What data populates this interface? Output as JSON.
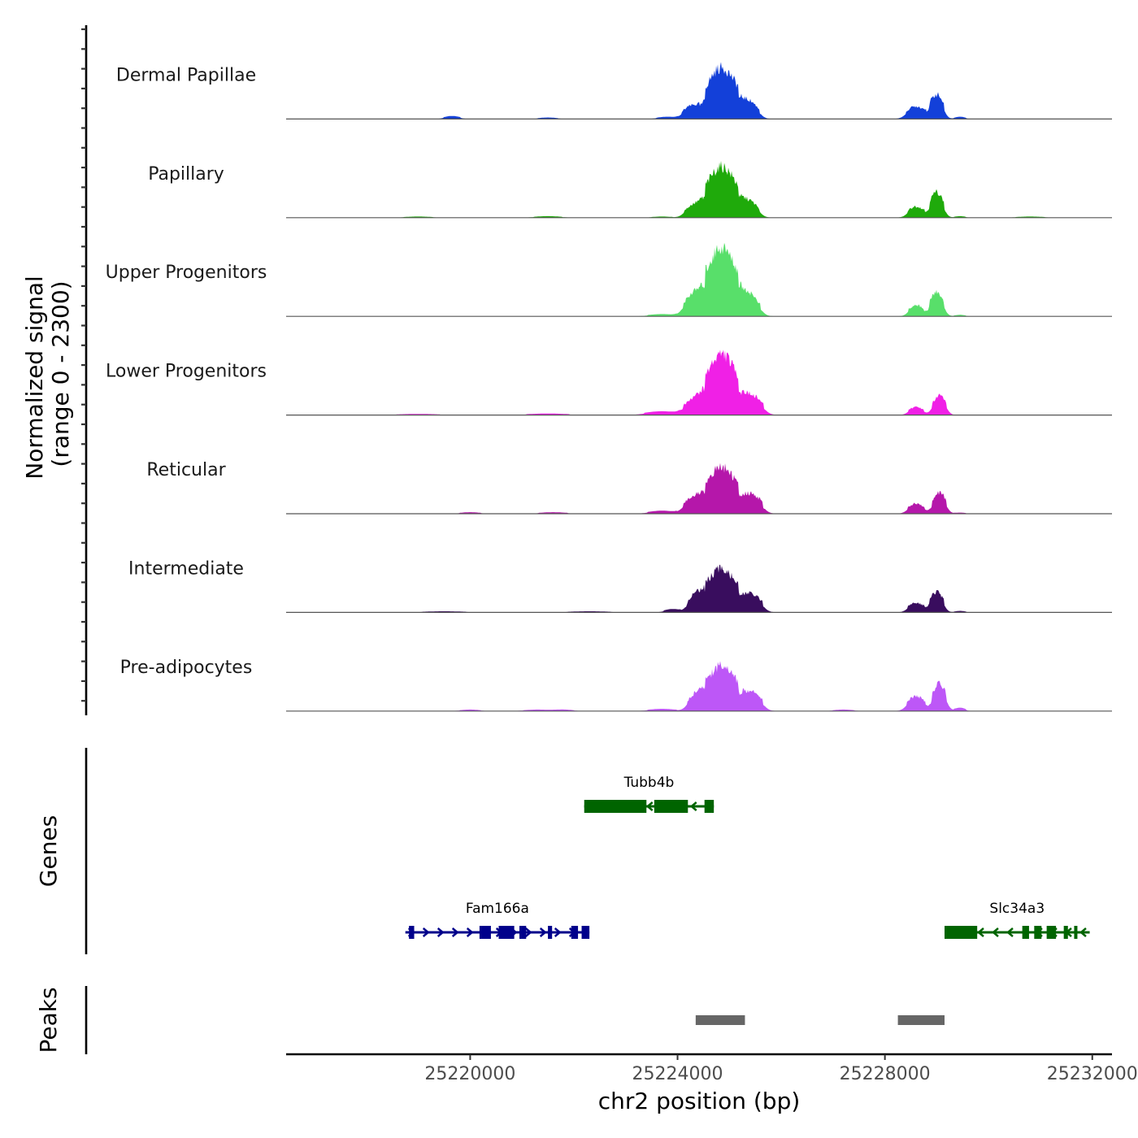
{
  "chart_data": {
    "type": "area",
    "title": "",
    "ylabel": "Normalized signal\n(range 0 - 2300)",
    "ylabel_lines": [
      "Normalized signal",
      "(range 0 - 2300)"
    ],
    "ylim": [
      0,
      2300
    ],
    "xlabel": "chr2 position (bp)",
    "xlim": [
      25216450,
      25232380
    ],
    "x_ticks": [
      25220000,
      25224000,
      25228000,
      25232000
    ],
    "x_tick_labels": [
      "25220000",
      "25224000",
      "25228000",
      "25232000"
    ],
    "grid": false,
    "legend": "none",
    "series": [
      {
        "name": "Dermal Papillae",
        "color": "#1340D9",
        "peaks": [
          [
            25219650,
            80,
            120
          ],
          [
            25221500,
            40,
            140
          ],
          [
            25223800,
            60,
            150
          ],
          [
            25224250,
            330,
            120
          ],
          [
            25224850,
            1450,
            230
          ],
          [
            25225400,
            440,
            130
          ],
          [
            25228600,
            360,
            140
          ],
          [
            25229000,
            690,
            100
          ],
          [
            25229450,
            60,
            80
          ]
        ]
      },
      {
        "name": "Papillary",
        "color": "#1FAA0B",
        "peaks": [
          [
            25219000,
            30,
            200
          ],
          [
            25221500,
            40,
            200
          ],
          [
            25223700,
            30,
            150
          ],
          [
            25224300,
            310,
            130
          ],
          [
            25224850,
            1440,
            230
          ],
          [
            25225400,
            410,
            130
          ],
          [
            25228600,
            320,
            120
          ],
          [
            25229000,
            730,
            100
          ],
          [
            25229450,
            40,
            80
          ],
          [
            25230800,
            30,
            200
          ]
        ]
      },
      {
        "name": "Upper Progenitors",
        "color": "#58DF6A",
        "peaks": [
          [
            25223700,
            60,
            200
          ],
          [
            25224300,
            580,
            140
          ],
          [
            25224850,
            1950,
            230
          ],
          [
            25225400,
            560,
            140
          ],
          [
            25228600,
            320,
            110
          ],
          [
            25229000,
            690,
            100
          ],
          [
            25229450,
            40,
            80
          ]
        ]
      },
      {
        "name": "Lower Progenitors",
        "color": "#F020E6",
        "peaks": [
          [
            25219000,
            30,
            300
          ],
          [
            25221500,
            40,
            300
          ],
          [
            25223700,
            100,
            250
          ],
          [
            25224300,
            410,
            140
          ],
          [
            25224850,
            1740,
            230
          ],
          [
            25225450,
            520,
            150
          ],
          [
            25228600,
            230,
            110
          ],
          [
            25229050,
            540,
            100
          ]
        ]
      },
      {
        "name": "Reticular",
        "color": "#B517AA",
        "peaks": [
          [
            25220000,
            40,
            150
          ],
          [
            25221600,
            40,
            200
          ],
          [
            25223700,
            80,
            200
          ],
          [
            25224300,
            440,
            140
          ],
          [
            25224850,
            1320,
            230
          ],
          [
            25225450,
            520,
            140
          ],
          [
            25228600,
            290,
            120
          ],
          [
            25229050,
            590,
            100
          ],
          [
            25229450,
            30,
            80
          ]
        ]
      },
      {
        "name": "Intermediate",
        "color": "#390D5E",
        "peaks": [
          [
            25219500,
            30,
            300
          ],
          [
            25222300,
            30,
            300
          ],
          [
            25223900,
            90,
            120
          ],
          [
            25224350,
            470,
            120
          ],
          [
            25224850,
            1240,
            230
          ],
          [
            25225450,
            490,
            140
          ],
          [
            25228600,
            270,
            120
          ],
          [
            25229000,
            580,
            100
          ],
          [
            25229450,
            40,
            80
          ]
        ]
      },
      {
        "name": "Pre-adipocytes",
        "color": "#BD57F7",
        "peaks": [
          [
            25220000,
            40,
            150
          ],
          [
            25221300,
            40,
            200
          ],
          [
            25221800,
            40,
            150
          ],
          [
            25223700,
            60,
            200
          ],
          [
            25224350,
            420,
            120
          ],
          [
            25224850,
            1300,
            230
          ],
          [
            25225450,
            530,
            140
          ],
          [
            25227200,
            40,
            150
          ],
          [
            25228600,
            420,
            130
          ],
          [
            25229050,
            780,
            100
          ],
          [
            25229450,
            90,
            80
          ]
        ]
      }
    ],
    "genes": [
      {
        "name": "Tubb4b",
        "strand": "-",
        "color": "#006400",
        "row": 0,
        "start": 25222200,
        "end": 25224700,
        "exons": [
          [
            25222200,
            25223400
          ],
          [
            25223550,
            25224200
          ],
          [
            25224520,
            25224700
          ]
        ]
      },
      {
        "name": "Fam166a",
        "strand": "+",
        "color": "#00008B",
        "row": 1,
        "start": 25218750,
        "end": 25222300,
        "exons": [
          [
            25218820,
            25218920
          ],
          [
            25220180,
            25220400
          ],
          [
            25220550,
            25220850
          ],
          [
            25220950,
            25221080
          ],
          [
            25221500,
            25221580
          ],
          [
            25221950,
            25222080
          ],
          [
            25222150,
            25222300
          ]
        ]
      },
      {
        "name": "Slc34a3",
        "strand": "-",
        "color": "#006400",
        "row": 1,
        "start": 25229150,
        "end": 25231950,
        "exons": [
          [
            25229150,
            25229780
          ],
          [
            25230650,
            25230780
          ],
          [
            25230880,
            25231020
          ],
          [
            25231120,
            25231300
          ],
          [
            25231450,
            25231530
          ],
          [
            25231650,
            25231710
          ]
        ]
      }
    ],
    "peaks_track": {
      "label": "Peaks",
      "color": "#666666",
      "regions": [
        [
          25224350,
          25225300
        ],
        [
          25228250,
          25229150
        ]
      ]
    },
    "genes_track_label": "Genes"
  }
}
